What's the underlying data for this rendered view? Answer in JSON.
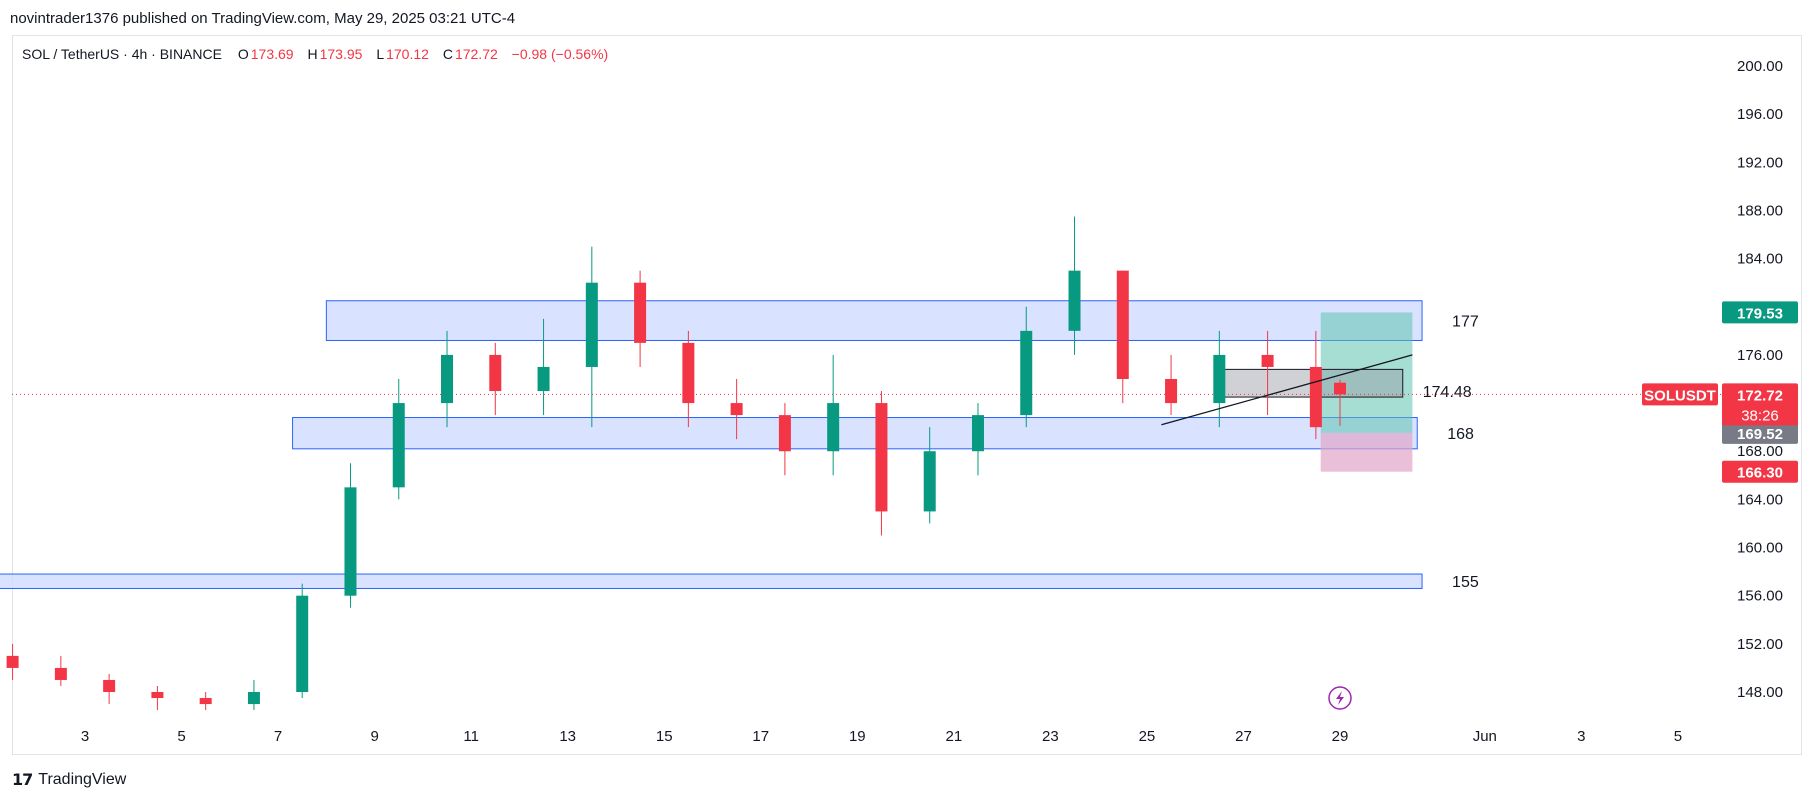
{
  "header": {
    "publish_line": "novintrader1376 published on TradingView.com, May 29, 2025 03:21 UTC-4"
  },
  "legend": {
    "symbol": "SOL / TetherUS · 4h · BINANCE",
    "o_label": "O",
    "o": "173.69",
    "h_label": "H",
    "h": "173.95",
    "l_label": "L",
    "l": "170.12",
    "c_label": "C",
    "c": "172.72",
    "change": "−0.98 (−0.56%)"
  },
  "footer": {
    "brand": "TradingView"
  },
  "chart_data": {
    "type": "candlestick",
    "symbol": "SOLUSDT",
    "timeframe": "4h",
    "ylim": [
      146,
      201
    ],
    "y_ticks": [
      "148.00",
      "152.00",
      "156.00",
      "160.00",
      "164.00",
      "168.00",
      "172.00",
      "176.00",
      "180.00",
      "184.00",
      "188.00",
      "192.00",
      "196.00",
      "200.00"
    ],
    "x_ticks": [
      {
        "label": "3",
        "day": 3
      },
      {
        "label": "5",
        "day": 5
      },
      {
        "label": "7",
        "day": 7
      },
      {
        "label": "9",
        "day": 9
      },
      {
        "label": "11",
        "day": 11
      },
      {
        "label": "13",
        "day": 13
      },
      {
        "label": "15",
        "day": 15
      },
      {
        "label": "17",
        "day": 17
      },
      {
        "label": "19",
        "day": 19
      },
      {
        "label": "21",
        "day": 21
      },
      {
        "label": "23",
        "day": 23
      },
      {
        "label": "25",
        "day": 25
      },
      {
        "label": "27",
        "day": 27
      },
      {
        "label": "29",
        "day": 29
      },
      {
        "label": "Jun",
        "day": 32
      },
      {
        "label": "3",
        "day": 34
      },
      {
        "label": "5",
        "day": 36
      }
    ],
    "x_unit": "day of May 2025",
    "candles_daily_summary": [
      {
        "day": 1.5,
        "o": 151,
        "h": 152,
        "l": 149,
        "c": 150
      },
      {
        "day": 2.5,
        "o": 150,
        "h": 151,
        "l": 148.5,
        "c": 149
      },
      {
        "day": 3.5,
        "o": 149,
        "h": 149.5,
        "l": 147,
        "c": 148
      },
      {
        "day": 4.5,
        "o": 148,
        "h": 148.5,
        "l": 146.5,
        "c": 147.5
      },
      {
        "day": 5.5,
        "o": 147.5,
        "h": 148,
        "l": 146.5,
        "c": 147
      },
      {
        "day": 6.5,
        "o": 147,
        "h": 149,
        "l": 146.5,
        "c": 148
      },
      {
        "day": 7.5,
        "o": 148,
        "h": 157,
        "l": 147.5,
        "c": 156
      },
      {
        "day": 8.5,
        "o": 156,
        "h": 167,
        "l": 155,
        "c": 165
      },
      {
        "day": 9.5,
        "o": 165,
        "h": 174,
        "l": 164,
        "c": 172
      },
      {
        "day": 10.5,
        "o": 172,
        "h": 178,
        "l": 170,
        "c": 176
      },
      {
        "day": 11.5,
        "o": 176,
        "h": 177,
        "l": 171,
        "c": 173
      },
      {
        "day": 12.5,
        "o": 173,
        "h": 179,
        "l": 171,
        "c": 175
      },
      {
        "day": 13.5,
        "o": 175,
        "h": 185,
        "l": 170,
        "c": 182
      },
      {
        "day": 14.5,
        "o": 182,
        "h": 183,
        "l": 175,
        "c": 177
      },
      {
        "day": 15.5,
        "o": 177,
        "h": 178,
        "l": 170,
        "c": 172
      },
      {
        "day": 16.5,
        "o": 172,
        "h": 174,
        "l": 169,
        "c": 171
      },
      {
        "day": 17.5,
        "o": 171,
        "h": 172,
        "l": 166,
        "c": 168
      },
      {
        "day": 18.5,
        "o": 168,
        "h": 176,
        "l": 166,
        "c": 172
      },
      {
        "day": 19.5,
        "o": 172,
        "h": 173,
        "l": 161,
        "c": 163
      },
      {
        "day": 20.5,
        "o": 163,
        "h": 170,
        "l": 162,
        "c": 168
      },
      {
        "day": 21.5,
        "o": 168,
        "h": 172,
        "l": 166,
        "c": 171
      },
      {
        "day": 22.5,
        "o": 171,
        "h": 180,
        "l": 170,
        "c": 178
      },
      {
        "day": 23.5,
        "o": 178,
        "h": 187.5,
        "l": 176,
        "c": 183
      },
      {
        "day": 24.5,
        "o": 183,
        "h": 183,
        "l": 172,
        "c": 174
      },
      {
        "day": 25.5,
        "o": 174,
        "h": 176,
        "l": 171,
        "c": 172
      },
      {
        "day": 26.5,
        "o": 172,
        "h": 178,
        "l": 170,
        "c": 176
      },
      {
        "day": 27.5,
        "o": 176,
        "h": 178,
        "l": 171,
        "c": 175
      },
      {
        "day": 28.5,
        "o": 175,
        "h": 178,
        "l": 169,
        "c": 170
      },
      {
        "day": 29.0,
        "o": 173.69,
        "h": 173.95,
        "l": 170.12,
        "c": 172.72
      }
    ],
    "zones": [
      {
        "label": "177",
        "top": 180.5,
        "bottom": 177.2,
        "from_day": 8.0,
        "to_day": 30.7
      },
      {
        "label": "168",
        "top": 170.8,
        "bottom": 168.2,
        "from_day": 7.3,
        "to_day": 30.6
      },
      {
        "label": "155",
        "top": 157.8,
        "bottom": 156.6,
        "from_day": 0.0,
        "to_day": 30.7
      }
    ],
    "small_box": {
      "top": 174.8,
      "bottom": 172.5,
      "from_day": 26.5,
      "to_day": 30.3
    },
    "trendline": {
      "from": {
        "day": 25.3,
        "price": 170.2
      },
      "to": {
        "day": 30.5,
        "price": 176.0
      }
    },
    "level_label": {
      "text": "174.48",
      "price": 173.0
    },
    "position_tool": {
      "entry": 169.52,
      "target": 179.53,
      "stop": 166.3,
      "from_day": 28.6,
      "to_day": 30.5
    },
    "last_price": {
      "value": "172.72",
      "countdown": "38:26"
    },
    "price_badges": [
      {
        "text": "179.53",
        "price": 179.53,
        "color": "#089981"
      },
      {
        "text": "169.52",
        "price": 169.52,
        "color": "#787b86"
      },
      {
        "text": "166.30",
        "price": 166.3,
        "color": "#f23645"
      }
    ],
    "colors": {
      "up": "#089981",
      "down": "#f23645",
      "zone_fill": "#cfdcff",
      "zone_stroke": "#2962ff",
      "tp": "#5ec2b0",
      "sl": "#e0a5c8",
      "symbol_badge": "#f23645"
    }
  }
}
